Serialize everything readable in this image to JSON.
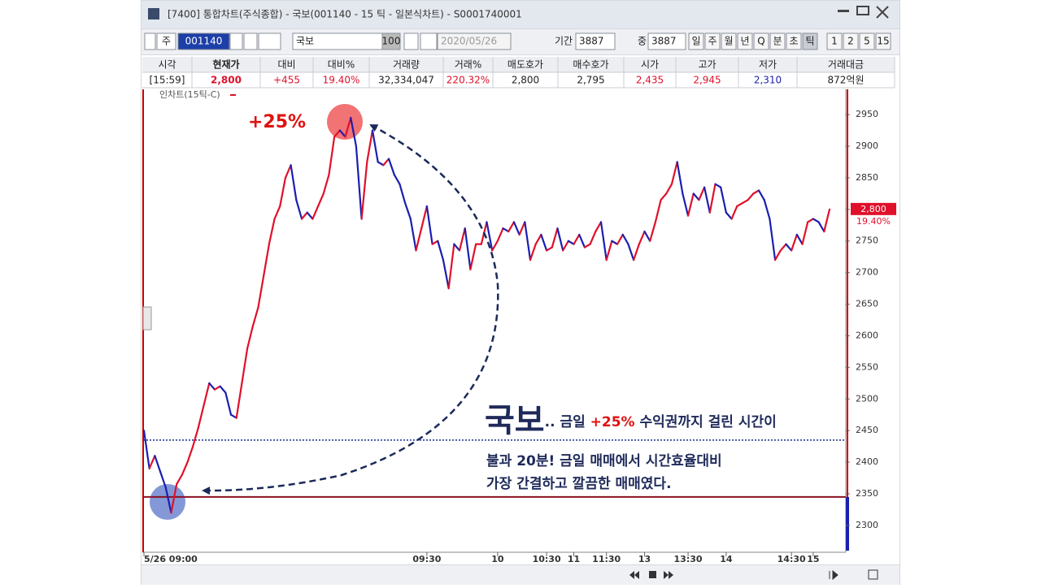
{
  "window": {
    "title": "[7400] 통합차트(주식종합) - 국보(001140 - 15 틱 - 일본식차트) - S0001740001"
  },
  "toolbar": {
    "market": "주",
    "code": "001140",
    "name": "국보",
    "count": "100",
    "date": "2020/05/26",
    "period_label": "기간",
    "period": "3887",
    "mid_label": "중",
    "mid": "3887",
    "intervals": [
      "일",
      "주",
      "월",
      "년",
      "Q",
      "분",
      "초",
      "틱",
      "1",
      "2",
      "5",
      "15"
    ]
  },
  "quote_table": {
    "headers": [
      "시각",
      "현재가",
      "대비",
      "대비%",
      "거래량",
      "거래%",
      "매도호가",
      "매수호가",
      "시가",
      "고가",
      "저가",
      "거래대금"
    ],
    "values": [
      "[15:59]",
      "2,800",
      "+455",
      "19.40%",
      "32,334,047",
      "220.32%",
      "2,800",
      "2,795",
      "2,435",
      "2,945",
      "2,310",
      "872억원"
    ]
  },
  "chart_data": {
    "type": "line",
    "legend": "인차트(15틱-C)",
    "up_color": "#e0102a",
    "down_color": "#1a1fb0",
    "values": [
      2450,
      2390,
      2410,
      2385,
      2360,
      2320,
      2365,
      2380,
      2400,
      2425,
      2455,
      2490,
      2525,
      2515,
      2520,
      2510,
      2475,
      2470,
      2525,
      2580,
      2615,
      2645,
      2695,
      2745,
      2785,
      2805,
      2850,
      2870,
      2815,
      2785,
      2795,
      2785,
      2805,
      2825,
      2855,
      2915,
      2925,
      2915,
      2945,
      2900,
      2785,
      2875,
      2925,
      2875,
      2870,
      2880,
      2855,
      2840,
      2810,
      2785,
      2735,
      2770,
      2805,
      2745,
      2750,
      2720,
      2675,
      2745,
      2735,
      2770,
      2705,
      2745,
      2745,
      2780,
      2735,
      2750,
      2770,
      2765,
      2780,
      2760,
      2780,
      2720,
      2745,
      2760,
      2735,
      2740,
      2770,
      2735,
      2750,
      2745,
      2760,
      2740,
      2745,
      2765,
      2780,
      2720,
      2750,
      2745,
      2760,
      2745,
      2720,
      2745,
      2765,
      2750,
      2780,
      2815,
      2825,
      2840,
      2875,
      2825,
      2790,
      2825,
      2815,
      2835,
      2795,
      2840,
      2835,
      2795,
      2785,
      2805,
      2810,
      2815,
      2825,
      2830,
      2815,
      2785,
      2720,
      2735,
      2745,
      2735,
      2760,
      2745,
      2780,
      2785,
      2780,
      2765,
      2800
    ],
    "xlim": [
      0,
      126
    ],
    "xticks": [
      {
        "value": 0,
        "label": "5/26 09:00"
      },
      {
        "value": 52,
        "label": "09:30"
      },
      {
        "value": 65,
        "label": "10"
      },
      {
        "value": 74,
        "label": "10:30"
      },
      {
        "value": 79,
        "label": "11"
      },
      {
        "value": 85,
        "label": "11:30"
      },
      {
        "value": 92,
        "label": "13"
      },
      {
        "value": 100,
        "label": "13:30"
      },
      {
        "value": 107,
        "label": "14"
      },
      {
        "value": 119,
        "label": "14:30"
      },
      {
        "value": 123,
        "label": "15"
      }
    ],
    "ylim": [
      2260,
      2990
    ],
    "yticks": [
      2300,
      2350,
      2400,
      2450,
      2500,
      2550,
      2600,
      2650,
      2700,
      2750,
      2800,
      2850,
      2900,
      2950
    ],
    "reference_lines": [
      {
        "value": 2435,
        "color": "#1a2a90",
        "style": "dotted"
      },
      {
        "value": 2345,
        "color": "#8a1020",
        "style": "solid"
      }
    ],
    "price_label": {
      "value": 2800,
      "label": "2,800"
    },
    "change_label": "19.40%",
    "annotations": {
      "peak": "+25%",
      "headline": "국보",
      "line1_a": ".. 금일 ",
      "line1_b": "+25%",
      "line1_c": " 수익권까지 걸린 시간이",
      "line2": "불과 20분!  금일 매매에서 시간효율대비",
      "line3": "가장 간결하고 깔끔한 매매였다."
    }
  }
}
